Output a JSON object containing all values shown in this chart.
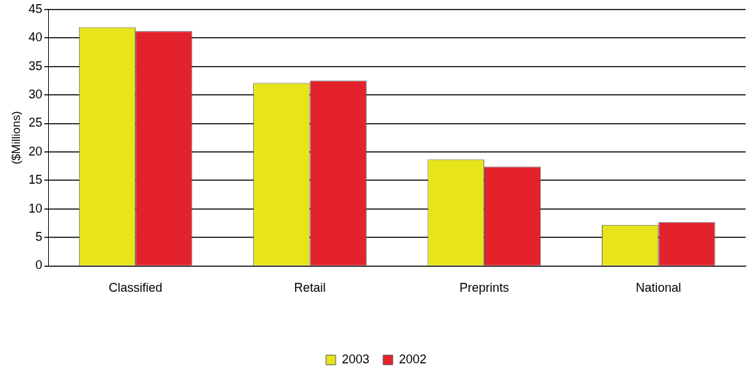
{
  "chart_data": {
    "type": "bar",
    "ylabel": "($Millions)",
    "categories": [
      "Classified",
      "Retail",
      "Preprints",
      "National"
    ],
    "series": [
      {
        "name": "2003",
        "color": "#e8e41c",
        "values": [
          41.9,
          32.1,
          18.7,
          7.2
        ]
      },
      {
        "name": "2002",
        "color": "#e3222b",
        "values": [
          41.2,
          32.5,
          17.4,
          7.7
        ]
      }
    ],
    "ylim": [
      0,
      45
    ],
    "yticks": [
      0,
      5,
      10,
      15,
      20,
      25,
      30,
      35,
      40,
      45
    ],
    "grid": "y",
    "legend": "bottom"
  }
}
